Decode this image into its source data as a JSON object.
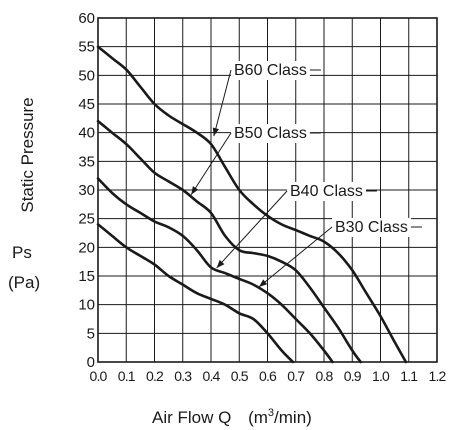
{
  "chart_data": {
    "type": "line",
    "xlabel_main": "Air Flow  Q",
    "xlabel_unit_prefix": "(m",
    "xlabel_unit_sup": "3",
    "xlabel_unit_suffix": "/min)",
    "ylabel_main": "Static Pressure",
    "ylabel_symbol": "Ps",
    "ylabel_unit": "(Pa)",
    "xlim": [
      0.0,
      1.2
    ],
    "ylim": [
      0,
      60
    ],
    "x_ticks": [
      "0.0",
      "0.1",
      "0.2",
      "0.3",
      "0.4",
      "0.5",
      "0.6",
      "0.7",
      "0.8",
      "0.9",
      "1.0",
      "1.1",
      "1.2"
    ],
    "y_ticks": [
      "0",
      "5",
      "10",
      "15",
      "20",
      "25",
      "30",
      "35",
      "40",
      "45",
      "50",
      "55",
      "60"
    ],
    "grid": true,
    "series": [
      {
        "name": "B60 Class",
        "x": [
          0.0,
          0.05,
          0.1,
          0.15,
          0.2,
          0.25,
          0.3,
          0.35,
          0.4,
          0.45,
          0.5,
          0.55,
          0.6,
          0.65,
          0.7,
          0.75,
          0.8,
          0.85,
          0.9,
          0.95,
          1.0,
          1.05,
          1.09
        ],
        "y": [
          55,
          53,
          51,
          48,
          45,
          43,
          41.5,
          40,
          38,
          34,
          30,
          27.5,
          25.5,
          24,
          23,
          22,
          21,
          19,
          16,
          12,
          8,
          3.5,
          0
        ]
      },
      {
        "name": "B50 Class",
        "x": [
          0.0,
          0.05,
          0.1,
          0.15,
          0.2,
          0.25,
          0.3,
          0.35,
          0.4,
          0.45,
          0.5,
          0.55,
          0.6,
          0.65,
          0.7,
          0.75,
          0.8,
          0.85,
          0.9,
          0.93
        ],
        "y": [
          42,
          40,
          38,
          35.5,
          33,
          31.5,
          30,
          28,
          26,
          22,
          19.5,
          19,
          18.5,
          17.5,
          16,
          13,
          9.5,
          6,
          2,
          0
        ]
      },
      {
        "name": "B40 Class",
        "x": [
          0.0,
          0.05,
          0.1,
          0.15,
          0.2,
          0.25,
          0.3,
          0.35,
          0.4,
          0.45,
          0.5,
          0.55,
          0.6,
          0.65,
          0.7,
          0.75,
          0.8,
          0.83
        ],
        "y": [
          32,
          29.5,
          27.5,
          26,
          24.5,
          23.5,
          22,
          19.5,
          16.5,
          15.5,
          14.5,
          13.5,
          12,
          10,
          7.5,
          5,
          2,
          0
        ]
      },
      {
        "name": "B30 Class",
        "x": [
          0.0,
          0.05,
          0.1,
          0.15,
          0.2,
          0.25,
          0.3,
          0.35,
          0.4,
          0.45,
          0.5,
          0.55,
          0.6,
          0.65,
          0.69
        ],
        "y": [
          24,
          22,
          20,
          18.5,
          17,
          15,
          13.5,
          12,
          11,
          10,
          8.5,
          7.5,
          5,
          2,
          0
        ]
      }
    ]
  }
}
